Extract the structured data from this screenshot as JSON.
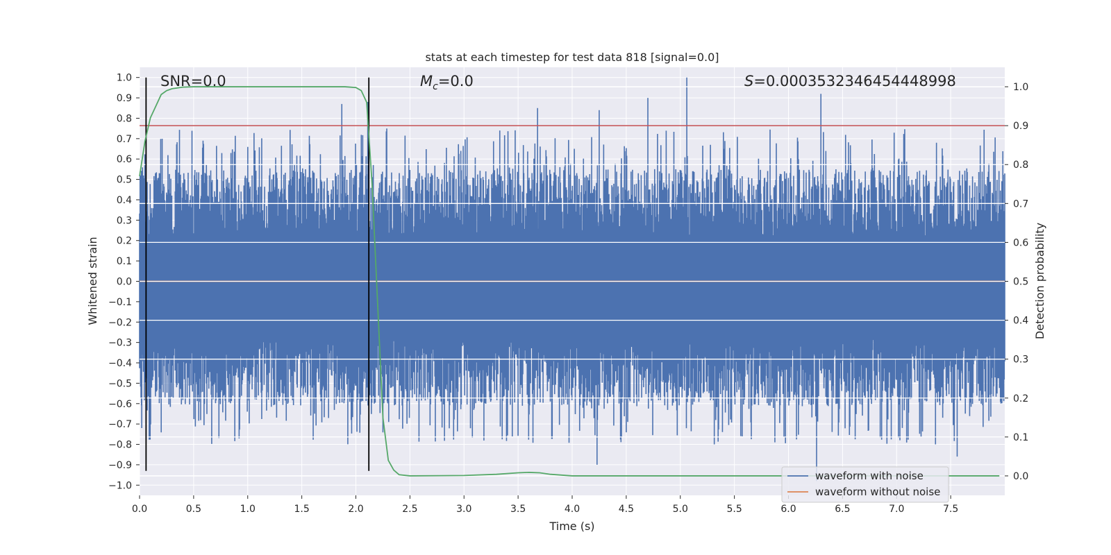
{
  "chart_data": {
    "type": "line",
    "title": "stats at each timestep for test data 818 [signal=0.0]",
    "xlabel": "Time (s)",
    "ylabel_left": "Whitened strain",
    "ylabel_right": "Detection probability",
    "xlim": [
      0.0,
      8.0
    ],
    "ylim_left": [
      -1.05,
      1.05
    ],
    "ylim_right": [
      -0.05,
      1.05
    ],
    "x_ticks": [
      "0.0",
      "0.5",
      "1.0",
      "1.5",
      "2.0",
      "2.5",
      "3.0",
      "3.5",
      "4.0",
      "4.5",
      "5.0",
      "5.5",
      "6.0",
      "6.5",
      "7.0",
      "7.5"
    ],
    "y_left_ticks": [
      "1.0",
      "0.9",
      "0.8",
      "0.7",
      "0.6",
      "0.5",
      "0.4",
      "0.3",
      "0.2",
      "0.1",
      "0.0",
      "−0.1",
      "−0.2",
      "−0.3",
      "−0.4",
      "−0.5",
      "−0.6",
      "−0.7",
      "−0.8",
      "−0.9",
      "−1.0"
    ],
    "y_right_ticks": [
      "1.0",
      "0.9",
      "0.8",
      "0.7",
      "0.6",
      "0.5",
      "0.4",
      "0.3",
      "0.2",
      "0.1",
      "0.0"
    ],
    "annotations": {
      "snr": "SNR=0.0",
      "mc_symbol": "M",
      "mc_sub": "c",
      "mc_value": "=0.0",
      "s_symbol": "S",
      "s_value": "=0.0003532346454448998"
    },
    "threshold_right": 0.9,
    "vertical_lines_x": [
      0.06,
      2.12
    ],
    "series": [
      {
        "name": "waveform with noise",
        "color": "#4c72b0",
        "axis": "left",
        "sample_rate": 2048,
        "duration": 8.0,
        "typical_peak": 0.55,
        "notable_peaks": [
          {
            "x": 1.87,
            "y": 0.87
          },
          {
            "x": 2.11,
            "y": 0.88
          },
          {
            "x": 3.68,
            "y": 0.85
          },
          {
            "x": 4.25,
            "y": 0.84
          },
          {
            "x": 4.7,
            "y": 0.9
          },
          {
            "x": 5.06,
            "y": 1.0
          },
          {
            "x": 6.3,
            "y": 0.92
          },
          {
            "x": 4.23,
            "y": -0.9
          },
          {
            "x": 7.56,
            "y": -0.86
          },
          {
            "x": 6.26,
            "y": -0.98
          },
          {
            "x": 0.02,
            "y": -0.72
          }
        ]
      },
      {
        "name": "waveform without noise",
        "color": "#dd8452",
        "axis": "left",
        "constant": 0.0
      },
      {
        "name": "detection probability",
        "color": "#55a868",
        "axis": "right",
        "x": [
          0.0,
          0.05,
          0.1,
          0.15,
          0.2,
          0.25,
          0.3,
          0.4,
          0.5,
          1.0,
          1.5,
          1.9,
          2.0,
          2.05,
          2.1,
          2.15,
          2.2,
          2.25,
          2.3,
          2.35,
          2.4,
          2.5,
          3.0,
          3.3,
          3.5,
          3.6,
          3.7,
          3.8,
          3.9,
          4.0,
          4.5,
          5.0,
          6.0,
          7.0,
          7.95
        ],
        "y": [
          0.77,
          0.86,
          0.92,
          0.95,
          0.98,
          0.99,
          0.995,
          0.999,
          1.0,
          1.0,
          1.0,
          1.0,
          0.998,
          0.99,
          0.96,
          0.75,
          0.45,
          0.15,
          0.04,
          0.015,
          0.003,
          0.0,
          0.001,
          0.004,
          0.008,
          0.009,
          0.008,
          0.004,
          0.002,
          0.0,
          0.0,
          0.0,
          0.0,
          0.0,
          0.0
        ]
      }
    ],
    "legend": {
      "position": "lower-right",
      "entries": [
        {
          "label": "waveform with noise",
          "color": "#4c72b0"
        },
        {
          "label": "waveform without noise",
          "color": "#dd8452"
        }
      ]
    }
  }
}
